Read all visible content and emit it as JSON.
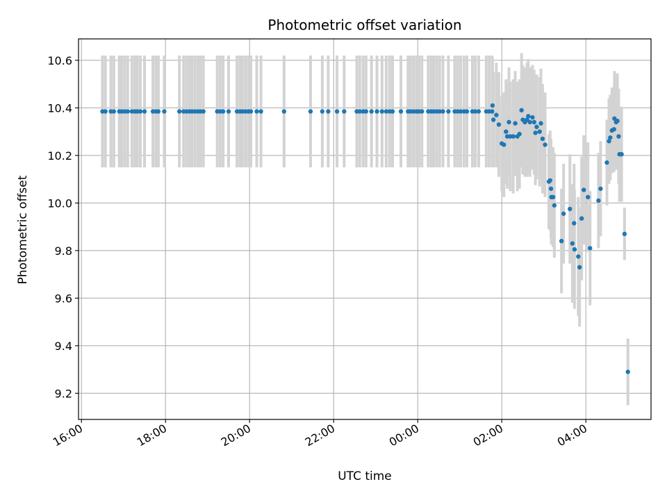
{
  "chart_data": {
    "type": "scatter",
    "title": "Photometric offset variation",
    "xlabel": "UTC time",
    "ylabel": "Photometric offset",
    "grid": true,
    "x_unit": "hours UTC, continuing past midnight as 24+",
    "xlim": [
      15.93,
      29.55
    ],
    "ylim": [
      9.09,
      10.69
    ],
    "x_ticks": [
      {
        "value": 16,
        "label": "16:00"
      },
      {
        "value": 18,
        "label": "18:00"
      },
      {
        "value": 20,
        "label": "20:00"
      },
      {
        "value": 22,
        "label": "22:00"
      },
      {
        "value": 24,
        "label": "00:00"
      },
      {
        "value": 26,
        "label": "02:00"
      },
      {
        "value": 28,
        "label": "04:00"
      }
    ],
    "y_ticks": [
      {
        "value": 9.2,
        "label": "9.2"
      },
      {
        "value": 9.4,
        "label": "9.4"
      },
      {
        "value": 9.6,
        "label": "9.6"
      },
      {
        "value": 9.8,
        "label": "9.8"
      },
      {
        "value": 10.0,
        "label": "10.0"
      },
      {
        "value": 10.2,
        "label": "10.2"
      },
      {
        "value": 10.4,
        "label": "10.4"
      },
      {
        "value": 10.6,
        "label": "10.6"
      }
    ],
    "colors": {
      "marker": "#1f77b4",
      "errorbar": "#d3d3d3",
      "grid": "#b0b0b0"
    },
    "points": [
      [
        16.5,
        10.385,
        0.235
      ],
      [
        16.57,
        10.385,
        0.235
      ],
      [
        16.7,
        10.385,
        0.235
      ],
      [
        16.77,
        10.385,
        0.235
      ],
      [
        16.9,
        10.385,
        0.235
      ],
      [
        16.96,
        10.385,
        0.235
      ],
      [
        17.03,
        10.385,
        0.235
      ],
      [
        17.1,
        10.385,
        0.235
      ],
      [
        17.2,
        10.385,
        0.235
      ],
      [
        17.27,
        10.385,
        0.235
      ],
      [
        17.33,
        10.385,
        0.235
      ],
      [
        17.4,
        10.385,
        0.235
      ],
      [
        17.5,
        10.385,
        0.235
      ],
      [
        17.7,
        10.385,
        0.235
      ],
      [
        17.77,
        10.385,
        0.235
      ],
      [
        17.83,
        10.385,
        0.235
      ],
      [
        17.97,
        10.385,
        0.235
      ],
      [
        18.33,
        10.385,
        0.235
      ],
      [
        18.43,
        10.385,
        0.235
      ],
      [
        18.5,
        10.385,
        0.235
      ],
      [
        18.57,
        10.385,
        0.235
      ],
      [
        18.63,
        10.385,
        0.235
      ],
      [
        18.7,
        10.385,
        0.235
      ],
      [
        18.77,
        10.385,
        0.235
      ],
      [
        18.83,
        10.385,
        0.235
      ],
      [
        18.9,
        10.385,
        0.235
      ],
      [
        19.23,
        10.385,
        0.235
      ],
      [
        19.3,
        10.385,
        0.235
      ],
      [
        19.37,
        10.385,
        0.235
      ],
      [
        19.5,
        10.385,
        0.235
      ],
      [
        19.7,
        10.385,
        0.235
      ],
      [
        19.77,
        10.385,
        0.235
      ],
      [
        19.83,
        10.385,
        0.235
      ],
      [
        19.9,
        10.385,
        0.235
      ],
      [
        19.97,
        10.385,
        0.235
      ],
      [
        20.03,
        10.385,
        0.235
      ],
      [
        20.17,
        10.385,
        0.235
      ],
      [
        20.27,
        10.385,
        0.235
      ],
      [
        20.82,
        10.385,
        0.235
      ],
      [
        21.45,
        10.385,
        0.235
      ],
      [
        21.73,
        10.385,
        0.235
      ],
      [
        21.87,
        10.385,
        0.235
      ],
      [
        22.08,
        10.385,
        0.235
      ],
      [
        22.25,
        10.385,
        0.235
      ],
      [
        22.55,
        10.385,
        0.235
      ],
      [
        22.62,
        10.385,
        0.235
      ],
      [
        22.7,
        10.385,
        0.235
      ],
      [
        22.77,
        10.385,
        0.235
      ],
      [
        22.9,
        10.385,
        0.235
      ],
      [
        23.03,
        10.385,
        0.235
      ],
      [
        23.15,
        10.385,
        0.235
      ],
      [
        23.25,
        10.385,
        0.235
      ],
      [
        23.33,
        10.385,
        0.235
      ],
      [
        23.4,
        10.385,
        0.235
      ],
      [
        23.6,
        10.385,
        0.235
      ],
      [
        23.77,
        10.385,
        0.235
      ],
      [
        23.83,
        10.385,
        0.235
      ],
      [
        23.9,
        10.385,
        0.235
      ],
      [
        23.97,
        10.385,
        0.235
      ],
      [
        24.03,
        10.385,
        0.235
      ],
      [
        24.1,
        10.385,
        0.235
      ],
      [
        24.25,
        10.385,
        0.235
      ],
      [
        24.32,
        10.385,
        0.235
      ],
      [
        24.38,
        10.385,
        0.235
      ],
      [
        24.45,
        10.385,
        0.235
      ],
      [
        24.52,
        10.385,
        0.235
      ],
      [
        24.6,
        10.385,
        0.235
      ],
      [
        24.73,
        10.385,
        0.235
      ],
      [
        24.88,
        10.385,
        0.235
      ],
      [
        24.95,
        10.385,
        0.235
      ],
      [
        25.02,
        10.385,
        0.235
      ],
      [
        25.1,
        10.385,
        0.235
      ],
      [
        25.17,
        10.385,
        0.235
      ],
      [
        25.3,
        10.385,
        0.235
      ],
      [
        25.37,
        10.385,
        0.235
      ],
      [
        25.45,
        10.385,
        0.235
      ],
      [
        25.63,
        10.385,
        0.235
      ],
      [
        25.7,
        10.385,
        0.235
      ],
      [
        25.77,
        10.385,
        0.235
      ],
      [
        25.78,
        10.41,
        0.2
      ],
      [
        25.8,
        10.35,
        0.2
      ],
      [
        25.87,
        10.37,
        0.22
      ],
      [
        25.93,
        10.33,
        0.22
      ],
      [
        26.0,
        10.25,
        0.2
      ],
      [
        26.05,
        10.245,
        0.22
      ],
      [
        26.1,
        10.3,
        0.22
      ],
      [
        26.13,
        10.28,
        0.22
      ],
      [
        26.17,
        10.34,
        0.23
      ],
      [
        26.2,
        10.28,
        0.23
      ],
      [
        26.27,
        10.28,
        0.24
      ],
      [
        26.32,
        10.335,
        0.22
      ],
      [
        26.37,
        10.28,
        0.23
      ],
      [
        26.42,
        10.29,
        0.23
      ],
      [
        26.47,
        10.39,
        0.24
      ],
      [
        26.5,
        10.35,
        0.23
      ],
      [
        26.55,
        10.34,
        0.23
      ],
      [
        26.6,
        10.35,
        0.24
      ],
      [
        26.63,
        10.365,
        0.24
      ],
      [
        26.67,
        10.34,
        0.23
      ],
      [
        26.73,
        10.36,
        0.22
      ],
      [
        26.77,
        10.34,
        0.22
      ],
      [
        26.8,
        10.295,
        0.22
      ],
      [
        26.83,
        10.32,
        0.22
      ],
      [
        26.9,
        10.3,
        0.23
      ],
      [
        26.93,
        10.335,
        0.23
      ],
      [
        26.97,
        10.27,
        0.23
      ],
      [
        27.03,
        10.245,
        0.22
      ],
      [
        27.12,
        10.09,
        0.2
      ],
      [
        27.15,
        10.095,
        0.21
      ],
      [
        27.17,
        10.06,
        0.21
      ],
      [
        27.18,
        10.025,
        0.2
      ],
      [
        27.22,
        10.025,
        0.21
      ],
      [
        27.25,
        9.99,
        0.22
      ],
      [
        27.42,
        9.84,
        0.22
      ],
      [
        27.47,
        9.955,
        0.21
      ],
      [
        27.62,
        9.975,
        0.23
      ],
      [
        27.68,
        9.83,
        0.25
      ],
      [
        27.72,
        9.915,
        0.25
      ],
      [
        27.73,
        9.805,
        0.25
      ],
      [
        27.82,
        9.775,
        0.25
      ],
      [
        27.85,
        9.73,
        0.25
      ],
      [
        27.9,
        9.935,
        0.26
      ],
      [
        27.95,
        10.055,
        0.23
      ],
      [
        28.05,
        10.025,
        0.23
      ],
      [
        28.1,
        9.81,
        0.24
      ],
      [
        28.3,
        10.01,
        0.2
      ],
      [
        28.35,
        10.06,
        0.2
      ],
      [
        28.5,
        10.17,
        0.18
      ],
      [
        28.55,
        10.26,
        0.18
      ],
      [
        28.58,
        10.275,
        0.18
      ],
      [
        28.62,
        10.305,
        0.18
      ],
      [
        28.67,
        10.31,
        0.18
      ],
      [
        28.68,
        10.355,
        0.2
      ],
      [
        28.72,
        10.34,
        0.2
      ],
      [
        28.75,
        10.345,
        0.2
      ],
      [
        28.78,
        10.28,
        0.2
      ],
      [
        28.8,
        10.205,
        0.2
      ],
      [
        28.85,
        10.205,
        0.2
      ],
      [
        28.92,
        9.87,
        0.11
      ],
      [
        29.0,
        9.29,
        0.14
      ]
    ]
  }
}
